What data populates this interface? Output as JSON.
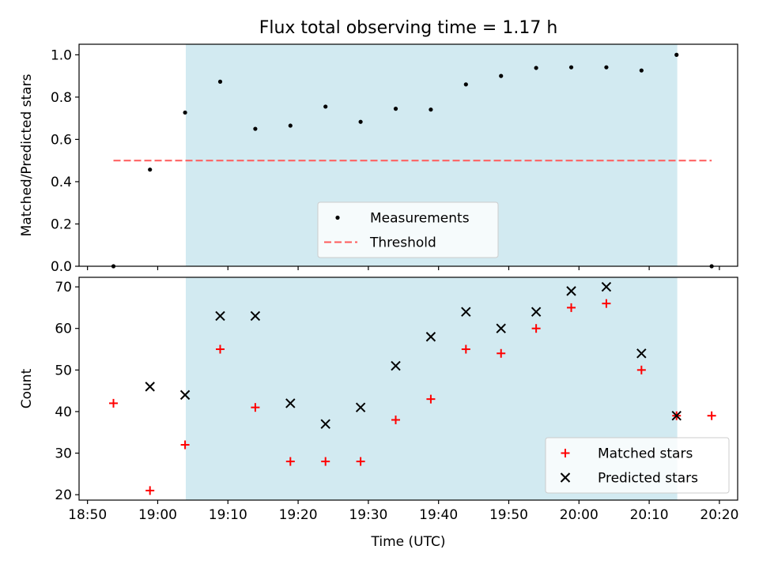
{
  "chart_data": {
    "title": "Flux total observing time = 1.17 h",
    "x_tick_labels": [
      "18:50",
      "19:00",
      "19:10",
      "19:20",
      "19:30",
      "19:40",
      "19:50",
      "20:00",
      "20:10",
      "20:20"
    ],
    "xlabel": "Time (UTC)",
    "x_unit": "minutes after 18:50 UTC",
    "xlim": [
      -1.2,
      92.6
    ],
    "observing_window": [
      14.0,
      84.0
    ],
    "colors": {
      "shade": "#add8e6",
      "measure": "#000000",
      "threshold": "#ff5a5a",
      "matched": "#ff0000",
      "predicted": "#000000"
    },
    "panels": [
      {
        "name": "ratio",
        "type": "scatter",
        "ylabel": "Matched/Predicted stars",
        "ylim": [
          0,
          1.05
        ],
        "yticks": [
          0.0,
          0.2,
          0.4,
          0.6,
          0.8,
          1.0
        ],
        "ytick_labels": [
          "0.0",
          "0.2",
          "0.4",
          "0.6",
          "0.8",
          "1.0"
        ],
        "x": [
          3.7,
          8.9,
          13.9,
          18.9,
          23.9,
          28.9,
          33.9,
          38.9,
          43.9,
          48.9,
          53.9,
          58.9,
          63.9,
          68.9,
          73.9,
          78.9,
          83.9,
          88.9
        ],
        "series": [
          {
            "name": "Measurements",
            "marker": "dot",
            "values": [
              0.0,
              0.457,
              0.727,
              0.873,
              0.65,
              0.665,
              0.755,
              0.683,
              0.745,
              0.741,
              0.86,
              0.9,
              0.938,
              0.941,
              0.941,
              0.926,
              1.0,
              0.0
            ]
          }
        ],
        "threshold": {
          "name": "Threshold",
          "value": 0.5,
          "x_range": [
            3.7,
            88.9
          ]
        },
        "legend": "lower center"
      },
      {
        "name": "count",
        "type": "scatter",
        "ylabel": "Count",
        "ylim": [
          18.7,
          72.3
        ],
        "yticks": [
          20,
          30,
          40,
          50,
          60,
          70
        ],
        "ytick_labels": [
          "20",
          "30",
          "40",
          "50",
          "60",
          "70"
        ],
        "x": [
          3.7,
          8.9,
          13.9,
          18.9,
          23.9,
          28.9,
          33.9,
          38.9,
          43.9,
          48.9,
          53.9,
          58.9,
          63.9,
          68.9,
          73.9,
          78.9,
          83.9,
          88.9
        ],
        "series": [
          {
            "name": "Matched stars",
            "marker": "plus",
            "values": [
              42,
              21,
              32,
              55,
              41,
              28,
              28,
              28,
              38,
              43,
              55,
              54,
              60,
              65,
              66,
              50,
              39,
              39
            ]
          },
          {
            "name": "Predicted stars",
            "marker": "x",
            "values": [
              null,
              46,
              44,
              63,
              63,
              42,
              37,
              41,
              51,
              58,
              64,
              60,
              64,
              69,
              70,
              54,
              39,
              null
            ]
          }
        ],
        "legend": "lower right"
      }
    ]
  }
}
